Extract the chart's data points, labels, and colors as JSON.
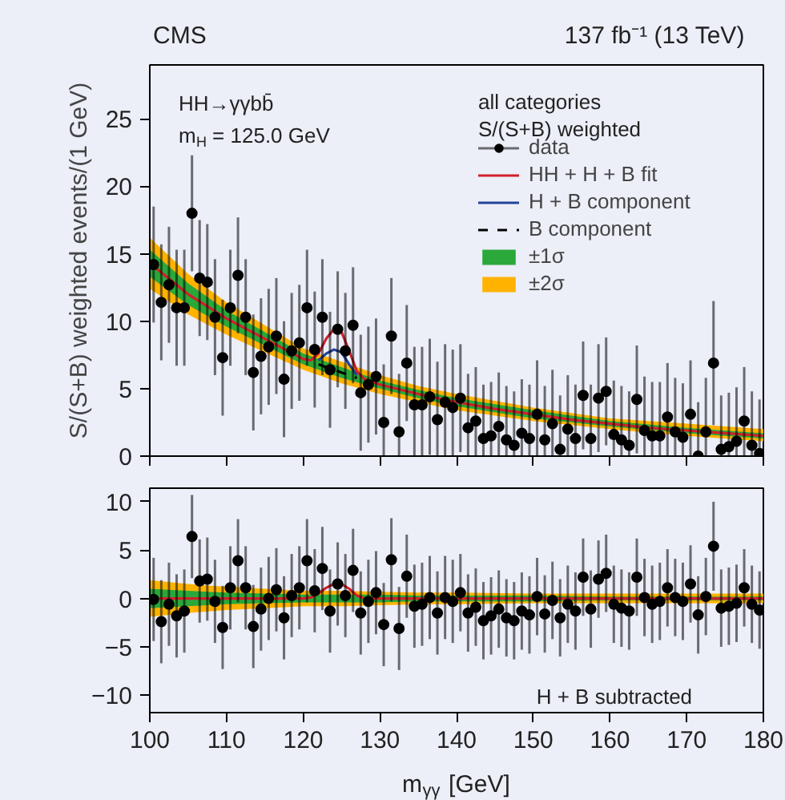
{
  "chart_data": [
    {
      "type": "scatter",
      "title": "CMS",
      "subtitle": "137 fb⁻¹ (13 TeV)",
      "ylabel": "S/(S+B) weighted events/(1 GeV)",
      "legend_title": "all categories\nS/(S+B) weighted",
      "annotations": [
        "HH→γγbb̄",
        "m$_{H}$ = 125.0 GeV"
      ],
      "xlim": [
        100,
        180
      ],
      "ylim": [
        0,
        29
      ],
      "xticks": [
        100,
        110,
        120,
        130,
        140,
        150,
        160,
        170,
        180
      ],
      "yticks": [
        0,
        5,
        10,
        15,
        20,
        25
      ],
      "tick_labels": "y",
      "legend": "top right",
      "series": [
        {
          "name": "±2σ",
          "type": "line",
          "color": "#ffb300",
          "x": [
            100,
            105,
            110,
            115,
            120,
            125,
            130,
            135,
            140,
            150,
            160,
            170,
            180
          ],
          "values": [
            null,
            null,
            null,
            null,
            null,
            null,
            null,
            null,
            null,
            null,
            null,
            null,
            null
          ],
          "lower": [
            12.4,
            10.5,
            9.0,
            7.7,
            6.4,
            5.4,
            4.6,
            4.0,
            3.4,
            2.6,
            2.0,
            1.5,
            1.1
          ],
          "upper": [
            16.2,
            13.5,
            11.4,
            9.7,
            8.0,
            7.0,
            6.0,
            5.2,
            4.6,
            3.6,
            2.8,
            2.4,
            2.0
          ]
        },
        {
          "name": "±1σ",
          "type": "line",
          "color": "#2aa83a",
          "x": [
            100,
            105,
            110,
            115,
            120,
            125,
            130,
            135,
            140,
            150,
            160,
            170,
            180
          ],
          "values": [
            null,
            null,
            null,
            null,
            null,
            null,
            null,
            null,
            null,
            null,
            null,
            null,
            null
          ],
          "lower": [
            13.3,
            11.2,
            9.6,
            8.2,
            6.8,
            5.8,
            5.0,
            4.3,
            3.7,
            2.8,
            2.2,
            1.7,
            1.3
          ],
          "upper": [
            15.3,
            12.8,
            10.8,
            9.2,
            7.6,
            6.6,
            5.6,
            4.9,
            4.3,
            3.4,
            2.6,
            2.1,
            1.7
          ]
        },
        {
          "name": "B component",
          "type": "line",
          "line_style": "dashed",
          "color": "#000000",
          "x": [
            122,
            123,
            124,
            125,
            126,
            127
          ],
          "values": [
            6.8,
            6.6,
            6.4,
            6.2,
            6.0,
            5.8
          ]
        },
        {
          "name": "H + B component",
          "type": "line",
          "color": "#22449a",
          "x": [
            122,
            123,
            124,
            125,
            126,
            127
          ],
          "values": [
            7.1,
            7.6,
            7.9,
            7.7,
            6.8,
            6.0
          ]
        },
        {
          "name": "HH + H + B fit",
          "type": "line",
          "color": "#d0202a",
          "x": [
            100,
            105,
            110,
            115,
            120,
            121,
            122,
            123,
            124,
            125,
            126,
            127,
            128,
            130,
            135,
            140,
            145,
            150,
            155,
            160,
            165,
            170,
            175,
            180
          ],
          "values": [
            14.3,
            12.0,
            10.2,
            8.7,
            7.2,
            7.1,
            7.6,
            8.7,
            9.4,
            9.2,
            7.8,
            6.3,
            5.7,
            5.3,
            4.6,
            4.0,
            3.5,
            3.1,
            2.7,
            2.4,
            2.1,
            1.9,
            1.7,
            1.5
          ]
        },
        {
          "name": "data",
          "color": "#000000",
          "marker": "circle",
          "x": [
            100.5,
            101.5,
            102.5,
            103.5,
            104.5,
            105.5,
            106.5,
            107.5,
            108.5,
            109.5,
            110.5,
            111.5,
            112.5,
            113.5,
            114.5,
            115.5,
            116.5,
            117.5,
            118.5,
            119.5,
            120.5,
            121.5,
            122.5,
            123.5,
            124.5,
            125.5,
            126.5,
            127.5,
            128.5,
            129.5,
            130.5,
            131.5,
            132.5,
            133.5,
            134.5,
            135.5,
            136.5,
            137.5,
            138.5,
            139.5,
            140.5,
            141.5,
            142.5,
            143.5,
            144.5,
            145.5,
            146.5,
            147.5,
            148.5,
            149.5,
            150.5,
            151.5,
            152.5,
            153.5,
            154.5,
            155.5,
            156.5,
            157.5,
            158.5,
            159.5,
            160.5,
            161.5,
            162.5,
            163.5,
            164.5,
            165.5,
            166.5,
            167.5,
            168.5,
            169.5,
            170.5,
            171.5,
            172.5,
            173.5,
            174.5,
            175.5,
            176.5,
            177.5,
            178.5,
            179.5
          ],
          "values": [
            14.2,
            11.4,
            12.7,
            11.0,
            11.0,
            18.0,
            13.2,
            12.9,
            10.3,
            7.3,
            11.0,
            13.4,
            10.3,
            6.2,
            7.4,
            8.1,
            8.9,
            5.7,
            7.8,
            8.4,
            11.0,
            7.9,
            10.3,
            6.4,
            9.4,
            7.8,
            9.7,
            4.7,
            5.3,
            5.9,
            2.5,
            8.9,
            1.8,
            6.9,
            3.8,
            3.8,
            4.4,
            2.7,
            4.0,
            3.6,
            4.3,
            2.1,
            2.6,
            1.3,
            1.5,
            2.2,
            1.2,
            0.8,
            1.7,
            1.3,
            3.1,
            1.2,
            2.4,
            0.5,
            2.0,
            1.3,
            4.5,
            1.3,
            4.3,
            4.8,
            1.6,
            1.2,
            0.8,
            4.2,
            1.9,
            1.5,
            1.5,
            2.9,
            1.8,
            1.4,
            3.1,
            0.0,
            1.8,
            6.9,
            0.5,
            0.7,
            1.1,
            2.6,
            0.8,
            0.2
          ],
          "errors": [
            4.3,
            4.3,
            4.3,
            4.3,
            4.3,
            4.3,
            4.3,
            4.3,
            4.3,
            4.3,
            4.3,
            4.3,
            4.3,
            4.3,
            4.3,
            4.3,
            4.3,
            4.3,
            4.3,
            4.3,
            4.3,
            4.3,
            4.3,
            4.3,
            4.3,
            4.3,
            4.3,
            4.3,
            4.3,
            4.3,
            [
              0,
              6.8
            ],
            4.3,
            [
              0,
              6.1
            ],
            4.3,
            [
              0,
              8.1
            ],
            [
              0,
              8.1
            ],
            4.3,
            [
              0,
              7.0
            ],
            [
              0,
              8.3
            ],
            [
              0,
              7.9
            ],
            4.0,
            [
              0,
              6.1
            ],
            [
              0,
              6.6
            ],
            [
              0,
              5.3
            ],
            [
              0,
              5.5
            ],
            [
              0,
              6.2
            ],
            [
              0,
              5.2
            ],
            [
              0,
              4.8
            ],
            [
              0,
              5.7
            ],
            [
              0,
              5.3
            ],
            [
              0,
              7.1
            ],
            [
              0,
              5.2
            ],
            [
              0,
              6.4
            ],
            [
              0,
              4.5
            ],
            [
              0,
              6.0
            ],
            [
              0,
              5.3
            ],
            4.0,
            [
              0,
              5.3
            ],
            4.0,
            4.0,
            [
              0,
              5.6
            ],
            [
              0,
              5.2
            ],
            [
              0,
              4.8
            ],
            4.0,
            [
              0,
              5.9
            ],
            [
              0,
              5.5
            ],
            [
              0,
              5.5
            ],
            [
              0,
              6.9
            ],
            [
              0,
              5.8
            ],
            [
              0,
              5.4
            ],
            [
              0,
              7.1
            ],
            [
              0,
              4.0
            ],
            [
              0,
              5.8
            ],
            4.6,
            [
              0,
              4.5
            ],
            [
              0,
              4.7
            ],
            [
              0,
              5.1
            ],
            [
              0,
              6.6
            ],
            [
              0,
              4.8
            ],
            [
              0,
              4.2
            ]
          ]
        }
      ]
    },
    {
      "type": "scatter",
      "xlabel": "m$_{γγ}$ [GeV]",
      "annotations": [
        "H + B subtracted"
      ],
      "xlim": [
        100,
        180
      ],
      "ylim": [
        -11.8,
        11.4
      ],
      "xticks": [
        100,
        110,
        120,
        130,
        140,
        150,
        160,
        170,
        180
      ],
      "yticks": [
        -10,
        -5,
        0,
        5,
        10
      ],
      "series": [
        {
          "type": "line",
          "color": "#ffb300",
          "x": [
            100,
            105,
            110,
            115,
            120,
            125,
            130,
            135,
            140,
            150,
            160,
            170,
            180
          ],
          "values": [
            null,
            null,
            null,
            null,
            null,
            null,
            null,
            null,
            null,
            null,
            null,
            null,
            null
          ],
          "lower": [
            -1.9,
            -1.5,
            -1.2,
            -1.0,
            -0.8,
            -0.8,
            -0.7,
            -0.6,
            -0.6,
            -0.5,
            -0.5,
            -0.5,
            -0.5
          ],
          "upper": [
            1.9,
            1.5,
            1.2,
            1.0,
            0.8,
            0.8,
            0.7,
            0.6,
            0.6,
            0.5,
            0.5,
            0.5,
            0.5
          ]
        },
        {
          "type": "line",
          "color": "#2aa83a",
          "x": [
            100,
            105,
            110,
            115,
            120,
            125,
            130,
            135,
            140,
            150,
            160,
            170,
            180
          ],
          "values": [
            null,
            null,
            null,
            null,
            null,
            null,
            null,
            null,
            null,
            null,
            null,
            null,
            null
          ],
          "lower": [
            -1.0,
            -0.8,
            -0.6,
            -0.5,
            -0.4,
            -0.4,
            -0.4,
            -0.3,
            -0.3,
            -0.3,
            -0.2,
            -0.2,
            -0.2
          ],
          "upper": [
            1.0,
            0.8,
            0.6,
            0.5,
            0.4,
            0.4,
            0.4,
            0.3,
            0.3,
            0.3,
            0.2,
            0.2,
            0.2
          ]
        },
        {
          "type": "line",
          "color": "#d0202a",
          "x": [
            100,
            120,
            121,
            122,
            123,
            124,
            125,
            126,
            127,
            128,
            130,
            180
          ],
          "values": [
            0,
            0,
            0.1,
            0.5,
            1.1,
            1.5,
            1.5,
            1.0,
            0.3,
            0,
            0,
            0
          ]
        },
        {
          "color": "#000000",
          "marker": "circle",
          "x": [
            100.5,
            101.5,
            102.5,
            103.5,
            104.5,
            105.5,
            106.5,
            107.5,
            108.5,
            109.5,
            110.5,
            111.5,
            112.5,
            113.5,
            114.5,
            115.5,
            116.5,
            117.5,
            118.5,
            119.5,
            120.5,
            121.5,
            122.5,
            123.5,
            124.5,
            125.5,
            126.5,
            127.5,
            128.5,
            129.5,
            130.5,
            131.5,
            132.5,
            133.5,
            134.5,
            135.5,
            136.5,
            137.5,
            138.5,
            139.5,
            140.5,
            141.5,
            142.5,
            143.5,
            144.5,
            145.5,
            146.5,
            147.5,
            148.5,
            149.5,
            150.5,
            151.5,
            152.5,
            153.5,
            154.5,
            155.5,
            156.5,
            157.5,
            158.5,
            159.5,
            160.5,
            161.5,
            162.5,
            163.5,
            164.5,
            165.5,
            166.5,
            167.5,
            168.5,
            169.5,
            170.5,
            171.5,
            172.5,
            173.5,
            174.5,
            175.5,
            176.5,
            177.5,
            178.5,
            179.5
          ],
          "values": [
            -0.1,
            -2.4,
            -0.6,
            -1.8,
            -1.3,
            6.4,
            1.8,
            2.0,
            -0.3,
            -3.0,
            1.1,
            3.9,
            1.1,
            -2.9,
            -1.1,
            0.0,
            0.9,
            -2.0,
            0.3,
            1.1,
            3.9,
            0.8,
            3.1,
            -1.3,
            1.5,
            0.3,
            2.9,
            -1.5,
            -0.3,
            0.6,
            -2.7,
            4.0,
            -3.1,
            2.3,
            -0.8,
            -0.6,
            0.1,
            -1.5,
            0.1,
            -0.3,
            0.6,
            -1.5,
            -0.9,
            -2.3,
            -1.8,
            -1.1,
            -2.0,
            -2.3,
            -1.3,
            -1.7,
            0.2,
            -1.6,
            -0.2,
            -2.0,
            -0.6,
            -1.3,
            2.2,
            -1.1,
            2.0,
            2.6,
            -0.6,
            -1.0,
            -1.3,
            2.2,
            0.1,
            -0.6,
            -0.3,
            1.1,
            0.1,
            -0.3,
            1.5,
            -1.7,
            0.2,
            5.4,
            -1.0,
            -0.8,
            -0.5,
            1.1,
            -0.6,
            -1.2
          ],
          "errors": [
            4.3,
            4.3,
            4.3,
            4.3,
            4.3,
            4.3,
            4.3,
            4.3,
            4.3,
            4.3,
            4.3,
            4.3,
            4.3,
            4.3,
            4.3,
            4.3,
            4.3,
            4.3,
            4.3,
            4.3,
            4.3,
            4.3,
            4.3,
            4.3,
            4.3,
            4.3,
            4.3,
            4.3,
            4.3,
            4.3,
            4.3,
            4.3,
            4.3,
            4.3,
            4.3,
            4.3,
            4.3,
            4.3,
            4.3,
            4.3,
            4.0,
            4.0,
            4.0,
            4.0,
            4.0,
            4.0,
            4.0,
            4.0,
            4.0,
            4.0,
            4.0,
            4.0,
            4.0,
            4.0,
            4.0,
            4.0,
            4.0,
            4.0,
            4.0,
            4.0,
            4.0,
            4.0,
            4.0,
            4.0,
            4.0,
            4.0,
            4.0,
            4.0,
            4.0,
            4.0,
            4.0,
            4.0,
            4.0,
            4.6,
            4.0,
            4.0,
            4.0,
            4.0,
            4.0,
            4.0
          ]
        }
      ]
    }
  ]
}
